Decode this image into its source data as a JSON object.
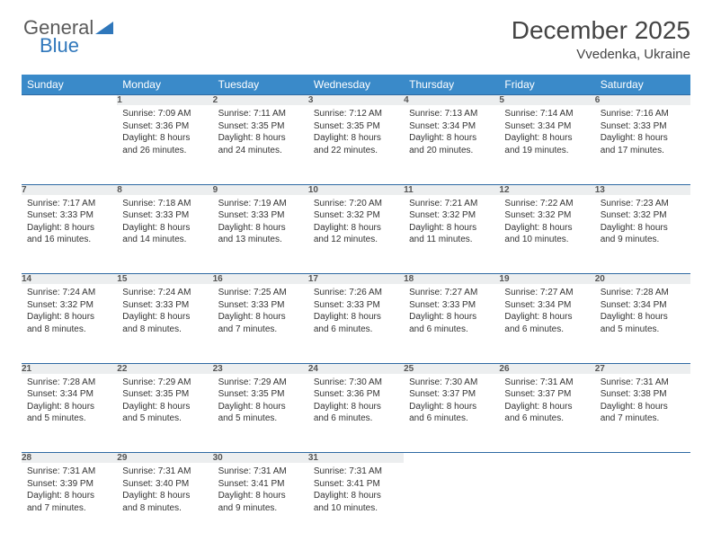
{
  "brand": {
    "part1": "General",
    "part2": "Blue"
  },
  "title": "December 2025",
  "location": "Vvedenka, Ukraine",
  "colors": {
    "header_bg": "#3a8ac9",
    "header_text": "#ffffff",
    "daynum_bg": "#eceeef",
    "row_border": "#2f6aa3",
    "body_text": "#333333",
    "page_bg": "#ffffff"
  },
  "day_labels": [
    "Sunday",
    "Monday",
    "Tuesday",
    "Wednesday",
    "Thursday",
    "Friday",
    "Saturday"
  ],
  "weeks": [
    [
      {
        "n": "",
        "sunrise": "",
        "sunset": "",
        "daylight": ""
      },
      {
        "n": "1",
        "sunrise": "Sunrise: 7:09 AM",
        "sunset": "Sunset: 3:36 PM",
        "daylight": "Daylight: 8 hours and 26 minutes."
      },
      {
        "n": "2",
        "sunrise": "Sunrise: 7:11 AM",
        "sunset": "Sunset: 3:35 PM",
        "daylight": "Daylight: 8 hours and 24 minutes."
      },
      {
        "n": "3",
        "sunrise": "Sunrise: 7:12 AM",
        "sunset": "Sunset: 3:35 PM",
        "daylight": "Daylight: 8 hours and 22 minutes."
      },
      {
        "n": "4",
        "sunrise": "Sunrise: 7:13 AM",
        "sunset": "Sunset: 3:34 PM",
        "daylight": "Daylight: 8 hours and 20 minutes."
      },
      {
        "n": "5",
        "sunrise": "Sunrise: 7:14 AM",
        "sunset": "Sunset: 3:34 PM",
        "daylight": "Daylight: 8 hours and 19 minutes."
      },
      {
        "n": "6",
        "sunrise": "Sunrise: 7:16 AM",
        "sunset": "Sunset: 3:33 PM",
        "daylight": "Daylight: 8 hours and 17 minutes."
      }
    ],
    [
      {
        "n": "7",
        "sunrise": "Sunrise: 7:17 AM",
        "sunset": "Sunset: 3:33 PM",
        "daylight": "Daylight: 8 hours and 16 minutes."
      },
      {
        "n": "8",
        "sunrise": "Sunrise: 7:18 AM",
        "sunset": "Sunset: 3:33 PM",
        "daylight": "Daylight: 8 hours and 14 minutes."
      },
      {
        "n": "9",
        "sunrise": "Sunrise: 7:19 AM",
        "sunset": "Sunset: 3:33 PM",
        "daylight": "Daylight: 8 hours and 13 minutes."
      },
      {
        "n": "10",
        "sunrise": "Sunrise: 7:20 AM",
        "sunset": "Sunset: 3:32 PM",
        "daylight": "Daylight: 8 hours and 12 minutes."
      },
      {
        "n": "11",
        "sunrise": "Sunrise: 7:21 AM",
        "sunset": "Sunset: 3:32 PM",
        "daylight": "Daylight: 8 hours and 11 minutes."
      },
      {
        "n": "12",
        "sunrise": "Sunrise: 7:22 AM",
        "sunset": "Sunset: 3:32 PM",
        "daylight": "Daylight: 8 hours and 10 minutes."
      },
      {
        "n": "13",
        "sunrise": "Sunrise: 7:23 AM",
        "sunset": "Sunset: 3:32 PM",
        "daylight": "Daylight: 8 hours and 9 minutes."
      }
    ],
    [
      {
        "n": "14",
        "sunrise": "Sunrise: 7:24 AM",
        "sunset": "Sunset: 3:32 PM",
        "daylight": "Daylight: 8 hours and 8 minutes."
      },
      {
        "n": "15",
        "sunrise": "Sunrise: 7:24 AM",
        "sunset": "Sunset: 3:33 PM",
        "daylight": "Daylight: 8 hours and 8 minutes."
      },
      {
        "n": "16",
        "sunrise": "Sunrise: 7:25 AM",
        "sunset": "Sunset: 3:33 PM",
        "daylight": "Daylight: 8 hours and 7 minutes."
      },
      {
        "n": "17",
        "sunrise": "Sunrise: 7:26 AM",
        "sunset": "Sunset: 3:33 PM",
        "daylight": "Daylight: 8 hours and 6 minutes."
      },
      {
        "n": "18",
        "sunrise": "Sunrise: 7:27 AM",
        "sunset": "Sunset: 3:33 PM",
        "daylight": "Daylight: 8 hours and 6 minutes."
      },
      {
        "n": "19",
        "sunrise": "Sunrise: 7:27 AM",
        "sunset": "Sunset: 3:34 PM",
        "daylight": "Daylight: 8 hours and 6 minutes."
      },
      {
        "n": "20",
        "sunrise": "Sunrise: 7:28 AM",
        "sunset": "Sunset: 3:34 PM",
        "daylight": "Daylight: 8 hours and 5 minutes."
      }
    ],
    [
      {
        "n": "21",
        "sunrise": "Sunrise: 7:28 AM",
        "sunset": "Sunset: 3:34 PM",
        "daylight": "Daylight: 8 hours and 5 minutes."
      },
      {
        "n": "22",
        "sunrise": "Sunrise: 7:29 AM",
        "sunset": "Sunset: 3:35 PM",
        "daylight": "Daylight: 8 hours and 5 minutes."
      },
      {
        "n": "23",
        "sunrise": "Sunrise: 7:29 AM",
        "sunset": "Sunset: 3:35 PM",
        "daylight": "Daylight: 8 hours and 5 minutes."
      },
      {
        "n": "24",
        "sunrise": "Sunrise: 7:30 AM",
        "sunset": "Sunset: 3:36 PM",
        "daylight": "Daylight: 8 hours and 6 minutes."
      },
      {
        "n": "25",
        "sunrise": "Sunrise: 7:30 AM",
        "sunset": "Sunset: 3:37 PM",
        "daylight": "Daylight: 8 hours and 6 minutes."
      },
      {
        "n": "26",
        "sunrise": "Sunrise: 7:31 AM",
        "sunset": "Sunset: 3:37 PM",
        "daylight": "Daylight: 8 hours and 6 minutes."
      },
      {
        "n": "27",
        "sunrise": "Sunrise: 7:31 AM",
        "sunset": "Sunset: 3:38 PM",
        "daylight": "Daylight: 8 hours and 7 minutes."
      }
    ],
    [
      {
        "n": "28",
        "sunrise": "Sunrise: 7:31 AM",
        "sunset": "Sunset: 3:39 PM",
        "daylight": "Daylight: 8 hours and 7 minutes."
      },
      {
        "n": "29",
        "sunrise": "Sunrise: 7:31 AM",
        "sunset": "Sunset: 3:40 PM",
        "daylight": "Daylight: 8 hours and 8 minutes."
      },
      {
        "n": "30",
        "sunrise": "Sunrise: 7:31 AM",
        "sunset": "Sunset: 3:41 PM",
        "daylight": "Daylight: 8 hours and 9 minutes."
      },
      {
        "n": "31",
        "sunrise": "Sunrise: 7:31 AM",
        "sunset": "Sunset: 3:41 PM",
        "daylight": "Daylight: 8 hours and 10 minutes."
      },
      {
        "n": "",
        "sunrise": "",
        "sunset": "",
        "daylight": ""
      },
      {
        "n": "",
        "sunrise": "",
        "sunset": "",
        "daylight": ""
      },
      {
        "n": "",
        "sunrise": "",
        "sunset": "",
        "daylight": ""
      }
    ]
  ]
}
